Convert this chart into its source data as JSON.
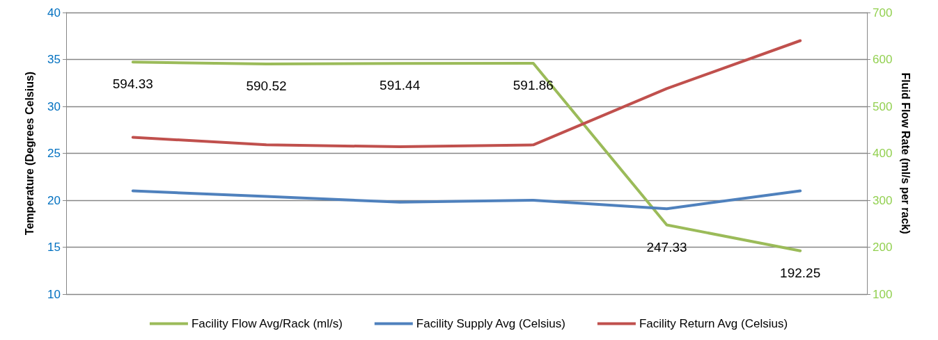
{
  "chart_data": {
    "type": "line",
    "categories": [
      null,
      null,
      null,
      null,
      null,
      null
    ],
    "ylabel": "Temperature (Degrees Celsius)",
    "y2label": "Fluid Flow Rate (ml/s per rack)",
    "ylim": [
      10,
      40
    ],
    "yticks": [
      10,
      15,
      20,
      25,
      30,
      35,
      40
    ],
    "y2lim": [
      100,
      700
    ],
    "y2ticks": [
      100,
      200,
      300,
      400,
      500,
      600,
      700
    ],
    "grid": "y",
    "legend": "bottom",
    "marker": "none",
    "line_style": "solid",
    "series": [
      {
        "name": "Facility Flow Avg/Rack (ml/s)",
        "color": "#9bbb59",
        "axis": "y2",
        "values": [
          594.33,
          590.52,
          591.44,
          591.86,
          247.33,
          192.25
        ],
        "value_labels": [
          "594.33",
          "590.52",
          "591.44",
          "591.86",
          "247.33",
          "192.25"
        ]
      },
      {
        "name": "Facility Supply Avg (Celsius)",
        "color": "#4f81bd",
        "values": [
          21.0,
          20.4,
          19.8,
          20.0,
          19.1,
          21.0
        ]
      },
      {
        "name": "Facility Return Avg (Celsius)",
        "color": "#c0504d",
        "values": [
          26.7,
          25.9,
          25.7,
          25.9,
          31.9,
          37.0
        ]
      }
    ]
  }
}
